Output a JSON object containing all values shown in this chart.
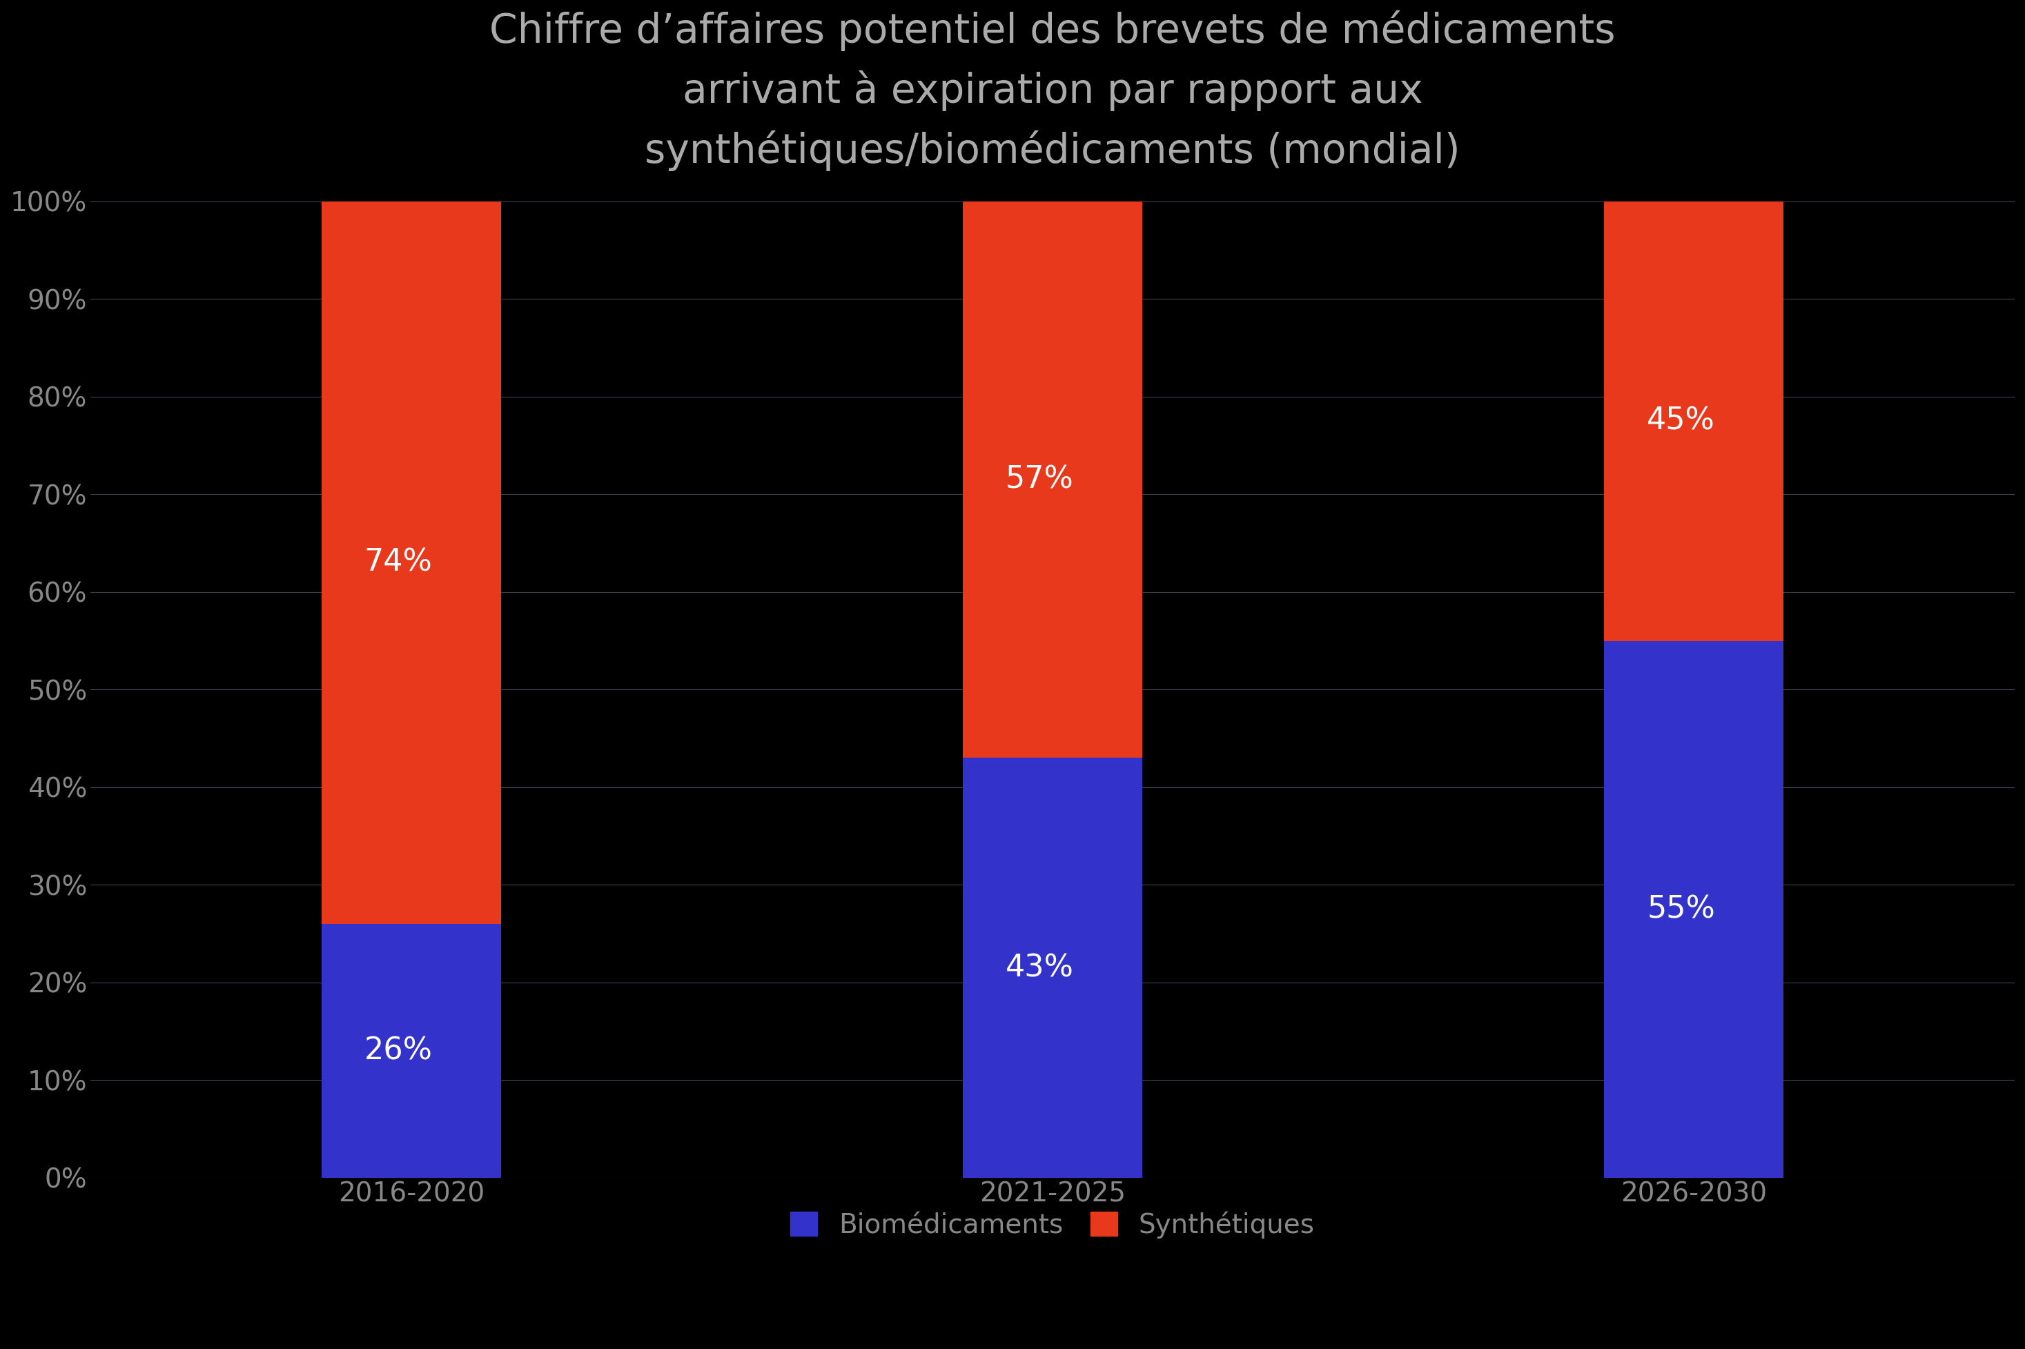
{
  "title_line1": "Chiffre d’affaires potentiel des brevets de médicaments",
  "title_line2": "arrivant à expiration par rapport aux",
  "title_line3": "synthétiques/biomédicaments (mondial)",
  "categories": [
    "2016-2020",
    "2021-2025",
    "2026-2030"
  ],
  "bio_values": [
    26,
    43,
    55
  ],
  "synth_values": [
    74,
    57,
    45
  ],
  "bio_color": "#3333CC",
  "synth_color": "#E8391D",
  "background_color": "#000000",
  "title_color": "#AAAAAA",
  "tick_color": "#888888",
  "text_color": "#FFFFFF",
  "grid_color": "#444455",
  "legend_bio": "Biomédicaments",
  "legend_synth": "Synthétiques",
  "bar_width": 0.28,
  "tick_fontsize": 28,
  "title_fontsize": 42,
  "legend_fontsize": 28,
  "annotation_fontsize": 32
}
